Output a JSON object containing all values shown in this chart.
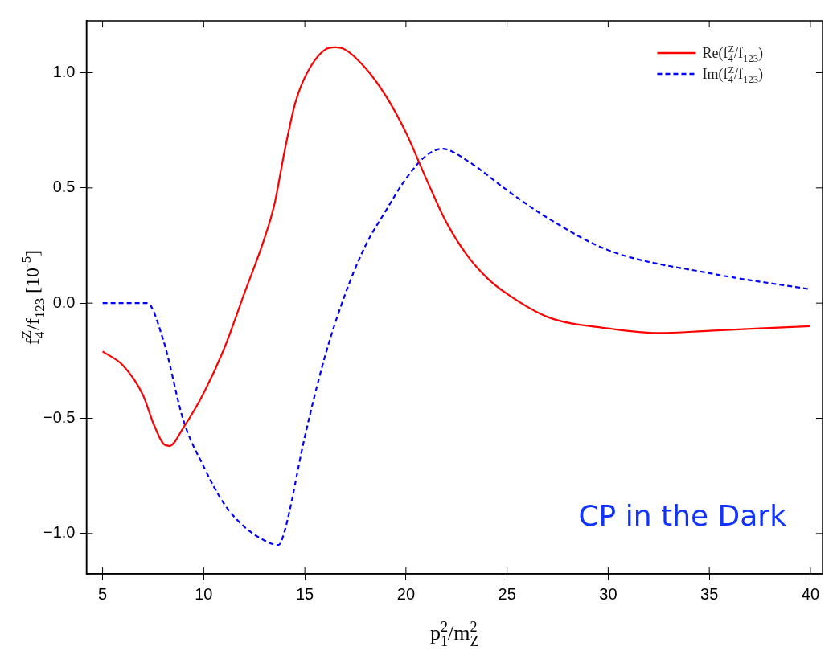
{
  "chart_data": {
    "type": "line",
    "xlabel": "p$_{1}$$^{2}$/m$_{Z}$$^{2}$",
    "ylabel": "f$_{4}$$^{Z}$/f$_{123}$ [10$^{-5}$]",
    "xlim": [
      4.2,
      40.6
    ],
    "xticks": [
      5,
      10,
      15,
      20,
      25,
      30,
      35,
      40
    ],
    "ylim": [
      -1.175,
      1.225
    ],
    "yticks": [
      {
        "value": -1,
        "label": "−1.0"
      },
      {
        "value": -0.5,
        "label": "−0.5"
      },
      {
        "value": 0,
        "label": "0.0"
      },
      {
        "value": 0.5,
        "label": "0.5"
      },
      {
        "value": 1,
        "label": "1.0"
      }
    ],
    "grid": false,
    "legend": "top right",
    "marker": "none",
    "annotations": [
      "CP in the Dark"
    ],
    "series": [
      {
        "name": "Re(f$_{4}$$^{Z}$/f$_{123}$)",
        "color": "#ff0000",
        "line_style": "solid",
        "x": [
          5,
          6,
          7,
          7.5,
          8,
          8.3,
          9,
          10,
          11,
          12,
          13,
          13.5,
          14,
          14.5,
          15,
          16,
          16.5,
          17,
          18,
          19,
          20,
          21,
          22,
          23,
          24,
          25,
          27,
          30,
          32.5,
          35,
          40
        ],
        "values": [
          -0.21,
          -0.27,
          -0.4,
          -0.52,
          -0.61,
          -0.62,
          -0.54,
          -0.39,
          -0.2,
          0.04,
          0.28,
          0.43,
          0.66,
          0.86,
          0.98,
          1.1,
          1.11,
          1.1,
          1.02,
          0.9,
          0.74,
          0.54,
          0.35,
          0.21,
          0.11,
          0.04,
          -0.06,
          -0.11,
          -0.13,
          -0.12,
          -0.1
        ]
      },
      {
        "name": "Im(f$_{4}$$^{Z}$/f$_{123}$)",
        "color": "#0000ff",
        "line_style": "dashed",
        "x": [
          5,
          7.2,
          8,
          9,
          10,
          11,
          12,
          13,
          13.7,
          14,
          15,
          16,
          17,
          18,
          19,
          20,
          21,
          21.8,
          23,
          25,
          27,
          30,
          35,
          40
        ],
        "values": [
          0,
          0,
          -0.16,
          -0.51,
          -0.71,
          -0.87,
          -0.97,
          -1.03,
          -1.05,
          -0.99,
          -0.58,
          -0.23,
          0.04,
          0.25,
          0.4,
          0.54,
          0.64,
          0.67,
          0.62,
          0.49,
          0.37,
          0.23,
          0.13,
          0.06
        ]
      }
    ]
  }
}
